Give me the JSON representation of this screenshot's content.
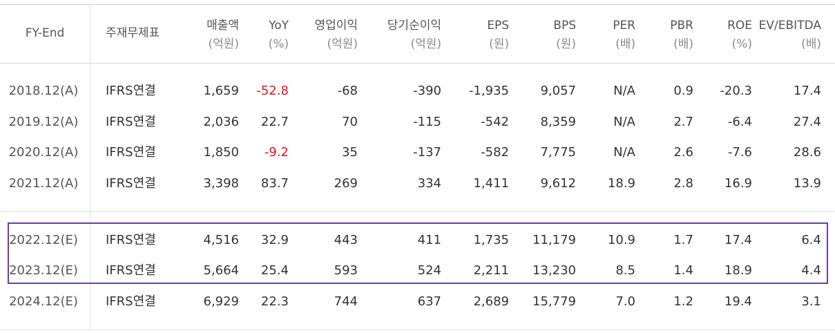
{
  "headers": [
    {
      "line1": "FY-End",
      "line2": ""
    },
    {
      "line1": "주재무제표",
      "line2": ""
    },
    {
      "line1": "매출액",
      "line2": "(억원)"
    },
    {
      "line1": "YoY",
      "line2": "(%)"
    },
    {
      "line1": "영업이익",
      "line2": "(억원)"
    },
    {
      "line1": "당기순이익",
      "line2": "(억원)"
    },
    {
      "line1": "EPS",
      "line2": "(원)"
    },
    {
      "line1": "BPS",
      "line2": "(원)"
    },
    {
      "line1": "PER",
      "line2": "(배)"
    },
    {
      "line1": "PBR",
      "line2": "(배)"
    },
    {
      "line1": "ROE",
      "line2": "(%)"
    },
    {
      "line1": "EV/EBITDA",
      "line2": "(배)"
    }
  ],
  "rows": [
    [
      "2018.12(A)",
      "IFRS연결",
      "1,659",
      "-52.8",
      "-68",
      "-390",
      "-1,935",
      "9,057",
      "N/A",
      "0.9",
      "-20.3",
      "17.4"
    ],
    [
      "2019.12(A)",
      "IFRS연결",
      "2,036",
      "22.7",
      "70",
      "-115",
      "-542",
      "8,359",
      "N/A",
      "2.7",
      "-6.4",
      "27.4"
    ],
    [
      "2020.12(A)",
      "IFRS연결",
      "1,850",
      "-9.2",
      "35",
      "-137",
      "-582",
      "7,775",
      "N/A",
      "2.6",
      "-7.6",
      "28.6"
    ],
    [
      "2021.12(A)",
      "IFRS연결",
      "3,398",
      "83.7",
      "269",
      "334",
      "1,411",
      "9,612",
      "18.9",
      "2.8",
      "16.9",
      "13.9"
    ],
    [
      "2022.12(E)",
      "IFRS연결",
      "4,516",
      "32.9",
      "443",
      "411",
      "1,735",
      "11,179",
      "10.9",
      "1.7",
      "17.4",
      "6.4"
    ],
    [
      "2023.12(E)",
      "IFRS연결",
      "5,664",
      "25.4",
      "593",
      "524",
      "2,211",
      "13,230",
      "8.5",
      "1.4",
      "18.9",
      "4.4"
    ],
    [
      "2024.12(E)",
      "IFRS연결",
      "6,929",
      "22.3",
      "744",
      "637",
      "2,689",
      "15,779",
      "7.0",
      "1.2",
      "19.4",
      "3.1"
    ]
  ],
  "colors": {
    "negative_yoy": "#e3141b",
    "highlight_border": "#6a3f9a"
  }
}
